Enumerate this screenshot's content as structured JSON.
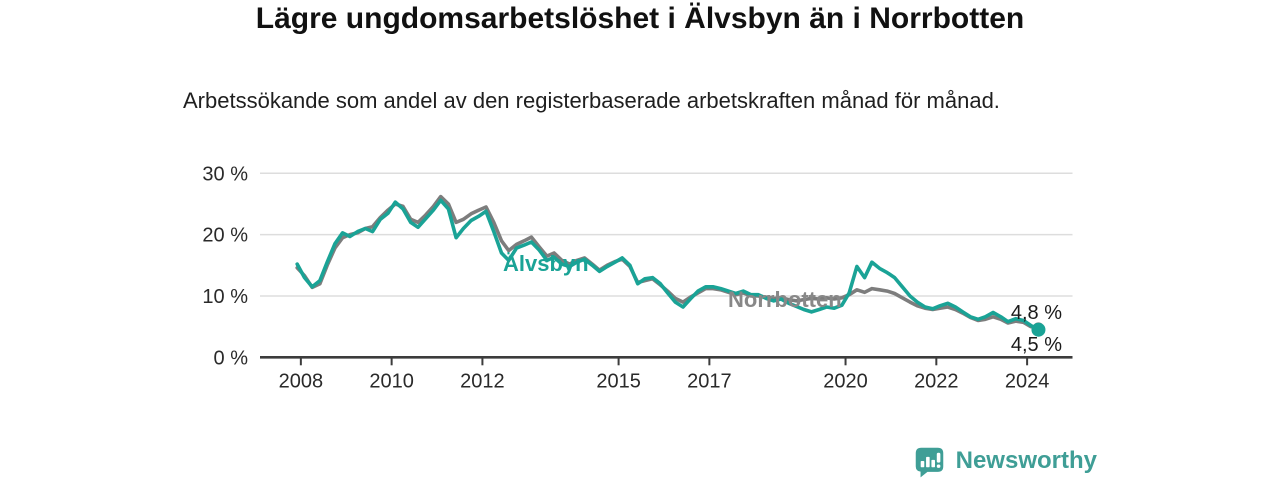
{
  "title": "Lägre ungdomsarbetslöshet i Älvsbyn än i Norrbotten",
  "subtitle": "Arbetssökande som andel av den registerbaserade arbetskraften månad för månad.",
  "footer": {
    "brand": "Newsworthy",
    "logo_icon": "bar-chart-speech-bubble-icon",
    "brand_color": "#3f9e96"
  },
  "colors": {
    "alvsbyn": "#1aa396",
    "norrbotten": "#7d7d7d",
    "norrbotten_label": "#888888",
    "grid": "#dddddd",
    "axis": "#3c3c3c",
    "tick_text": "#2a2a2a"
  },
  "chart_data": {
    "type": "line",
    "title": "Lägre ungdomsarbetslöshet i Älvsbyn än i Norrbotten",
    "subtitle": "Arbetssökande som andel av den registerbaserade arbetskraften månad för månad.",
    "xlabel": "",
    "ylabel": "",
    "grid": "horizontal-only",
    "legend_position": "inline-labels-on-lines",
    "xlim": [
      2007.1,
      2025.0
    ],
    "ylim": [
      0,
      32
    ],
    "x_ticks": [
      2008,
      2010,
      2012,
      2015,
      2017,
      2020,
      2022,
      2024
    ],
    "y_ticks": [
      0,
      10,
      20,
      30
    ],
    "y_tick_labels": [
      "0 %",
      "10 %",
      "20 %",
      "30 %"
    ],
    "x": [
      2007.92,
      2008.08,
      2008.25,
      2008.42,
      2008.58,
      2008.75,
      2008.92,
      2009.08,
      2009.25,
      2009.42,
      2009.58,
      2009.75,
      2009.92,
      2010.08,
      2010.25,
      2010.42,
      2010.58,
      2010.75,
      2010.92,
      2011.08,
      2011.25,
      2011.42,
      2011.58,
      2011.75,
      2011.92,
      2012.08,
      2012.25,
      2012.42,
      2012.58,
      2012.75,
      2012.92,
      2013.08,
      2013.25,
      2013.42,
      2013.58,
      2013.75,
      2013.92,
      2014.08,
      2014.25,
      2014.42,
      2014.58,
      2014.75,
      2014.92,
      2015.08,
      2015.25,
      2015.42,
      2015.58,
      2015.75,
      2015.92,
      2016.08,
      2016.25,
      2016.42,
      2016.58,
      2016.75,
      2016.92,
      2017.08,
      2017.25,
      2017.42,
      2017.58,
      2017.75,
      2017.92,
      2018.08,
      2018.25,
      2018.42,
      2018.58,
      2018.75,
      2018.92,
      2019.08,
      2019.25,
      2019.42,
      2019.58,
      2019.75,
      2019.92,
      2020.08,
      2020.25,
      2020.42,
      2020.58,
      2020.75,
      2020.92,
      2021.08,
      2021.25,
      2021.42,
      2021.58,
      2021.75,
      2021.92,
      2022.08,
      2022.25,
      2022.42,
      2022.58,
      2022.75,
      2022.92,
      2023.08,
      2023.25,
      2023.42,
      2023.58,
      2023.75,
      2023.92,
      2024.08,
      2024.25
    ],
    "series": [
      {
        "name": "Norrbotten",
        "color": "#7d7d7d",
        "end_label": "4,8 %",
        "latest_value": 4.8,
        "values": [
          14.6,
          13.3,
          11.4,
          12.0,
          15.0,
          17.8,
          19.5,
          20.0,
          20.3,
          21.0,
          21.3,
          22.8,
          24.0,
          25.0,
          24.6,
          22.5,
          22.0,
          23.2,
          24.6,
          26.2,
          25.0,
          22.0,
          22.5,
          23.4,
          24.0,
          24.5,
          22.0,
          19.0,
          17.4,
          18.4,
          19.0,
          19.6,
          18.0,
          16.5,
          17.0,
          15.8,
          15.2,
          15.8,
          16.2,
          15.2,
          14.2,
          15.0,
          15.6,
          16.0,
          14.8,
          12.2,
          12.5,
          12.8,
          11.8,
          10.8,
          9.6,
          9.0,
          9.8,
          10.5,
          11.2,
          11.2,
          11.0,
          10.6,
          10.2,
          10.5,
          10.0,
          10.0,
          9.8,
          9.6,
          9.7,
          9.4,
          9.2,
          9.4,
          9.6,
          9.5,
          9.7,
          9.5,
          9.7,
          10.2,
          11.0,
          10.6,
          11.2,
          11.0,
          10.8,
          10.4,
          9.7,
          9.0,
          8.4,
          8.0,
          7.8,
          8.0,
          8.2,
          7.8,
          7.2,
          6.5,
          6.0,
          6.2,
          6.6,
          6.2,
          5.6,
          5.9,
          5.7,
          5.0,
          4.8
        ]
      },
      {
        "name": "Älvsbyn",
        "color": "#1aa396",
        "end_label": "4,5 %",
        "latest_value": 4.5,
        "values": [
          15.2,
          13.0,
          11.5,
          12.5,
          15.5,
          18.5,
          20.3,
          19.7,
          20.5,
          21.0,
          20.5,
          22.5,
          23.5,
          25.3,
          24.2,
          22.0,
          21.2,
          22.6,
          24.0,
          25.6,
          24.2,
          19.5,
          21.0,
          22.3,
          23.0,
          23.8,
          20.5,
          17.0,
          15.8,
          17.8,
          18.3,
          18.8,
          17.5,
          15.8,
          16.3,
          15.2,
          14.8,
          15.5,
          16.0,
          15.0,
          14.0,
          14.8,
          15.5,
          16.2,
          15.0,
          12.0,
          12.8,
          13.0,
          12.0,
          10.5,
          9.0,
          8.2,
          9.5,
          10.8,
          11.5,
          11.5,
          11.2,
          10.8,
          10.4,
          10.8,
          10.2,
          10.2,
          9.6,
          9.2,
          9.5,
          8.8,
          8.3,
          7.8,
          7.4,
          7.8,
          8.2,
          8.0,
          8.5,
          10.5,
          14.8,
          13.0,
          15.5,
          14.5,
          13.8,
          13.0,
          11.5,
          10.0,
          9.0,
          8.2,
          7.9,
          8.4,
          8.8,
          8.2,
          7.4,
          6.6,
          6.2,
          6.6,
          7.3,
          6.6,
          5.8,
          6.3,
          6.0,
          5.2,
          4.5
        ]
      }
    ]
  }
}
